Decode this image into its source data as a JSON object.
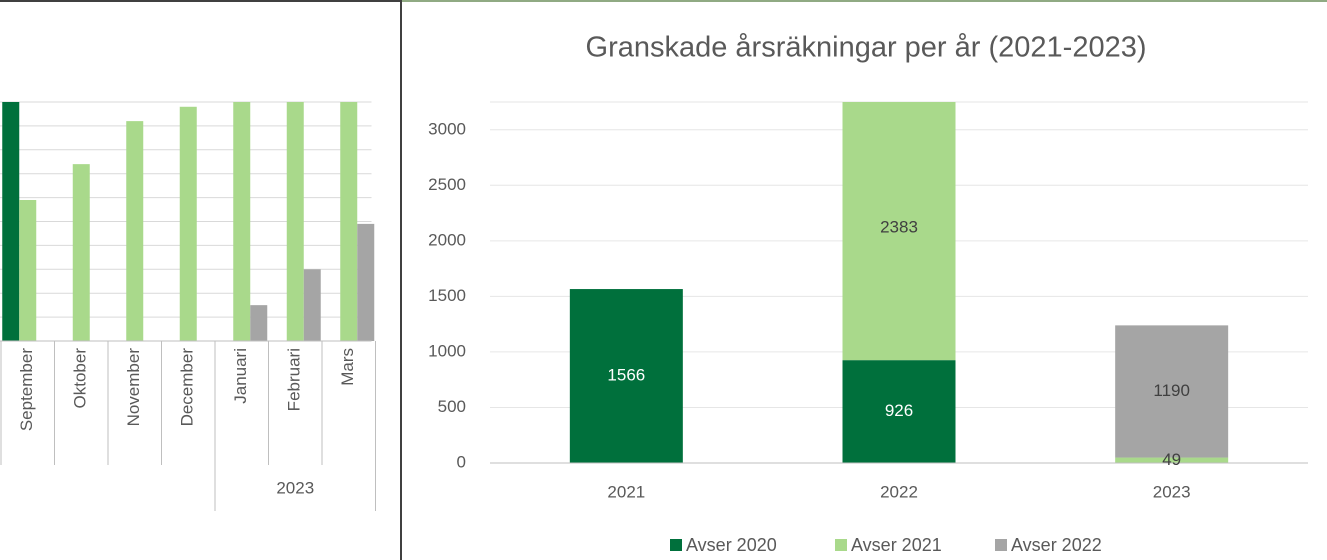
{
  "chart_data": [
    {
      "type": "bar",
      "categories": [
        "September",
        "Oktober",
        "November",
        "December",
        "Januari",
        "Februari",
        "Mars"
      ],
      "category_groups": [
        null,
        null,
        null,
        null,
        "2023",
        "2023",
        "2023"
      ],
      "series": [
        {
          "color": "#00703c",
          "values": [
            10,
            null,
            null,
            null,
            null,
            null,
            null
          ]
        },
        {
          "color": "#a9d98b",
          "values": [
            5.9,
            7.4,
            9.2,
            9.8,
            10,
            10,
            10
          ]
        },
        {
          "color": "#a5a5a5",
          "values": [
            null,
            null,
            null,
            null,
            1.5,
            3.0,
            4.9
          ]
        }
      ],
      "ylim": [
        0,
        10
      ],
      "yticks": [
        0,
        1,
        2,
        3,
        4,
        5,
        6,
        7,
        8,
        9,
        10
      ],
      "grid": true
    },
    {
      "type": "stacked_bar",
      "title": "Granskade årsräkningar per år (2021-2023)",
      "categories": [
        "2021",
        "2022",
        "2023"
      ],
      "series": [
        {
          "name": "Avser 2020",
          "color": "#00703c",
          "label_color": "#ffffff",
          "values": [
            1566,
            926,
            null
          ]
        },
        {
          "name": "Avser 2021",
          "color": "#a9d98b",
          "label_color": "#404040",
          "values": [
            null,
            2383,
            49
          ]
        },
        {
          "name": "Avser 2022",
          "color": "#a5a5a5",
          "label_color": "#404040",
          "values": [
            null,
            null,
            1190
          ]
        }
      ],
      "ylim": [
        0,
        3250
      ],
      "yticks": [
        0,
        500,
        1000,
        1500,
        2000,
        2500,
        3000
      ],
      "grid": true,
      "legend": "bottom"
    }
  ]
}
